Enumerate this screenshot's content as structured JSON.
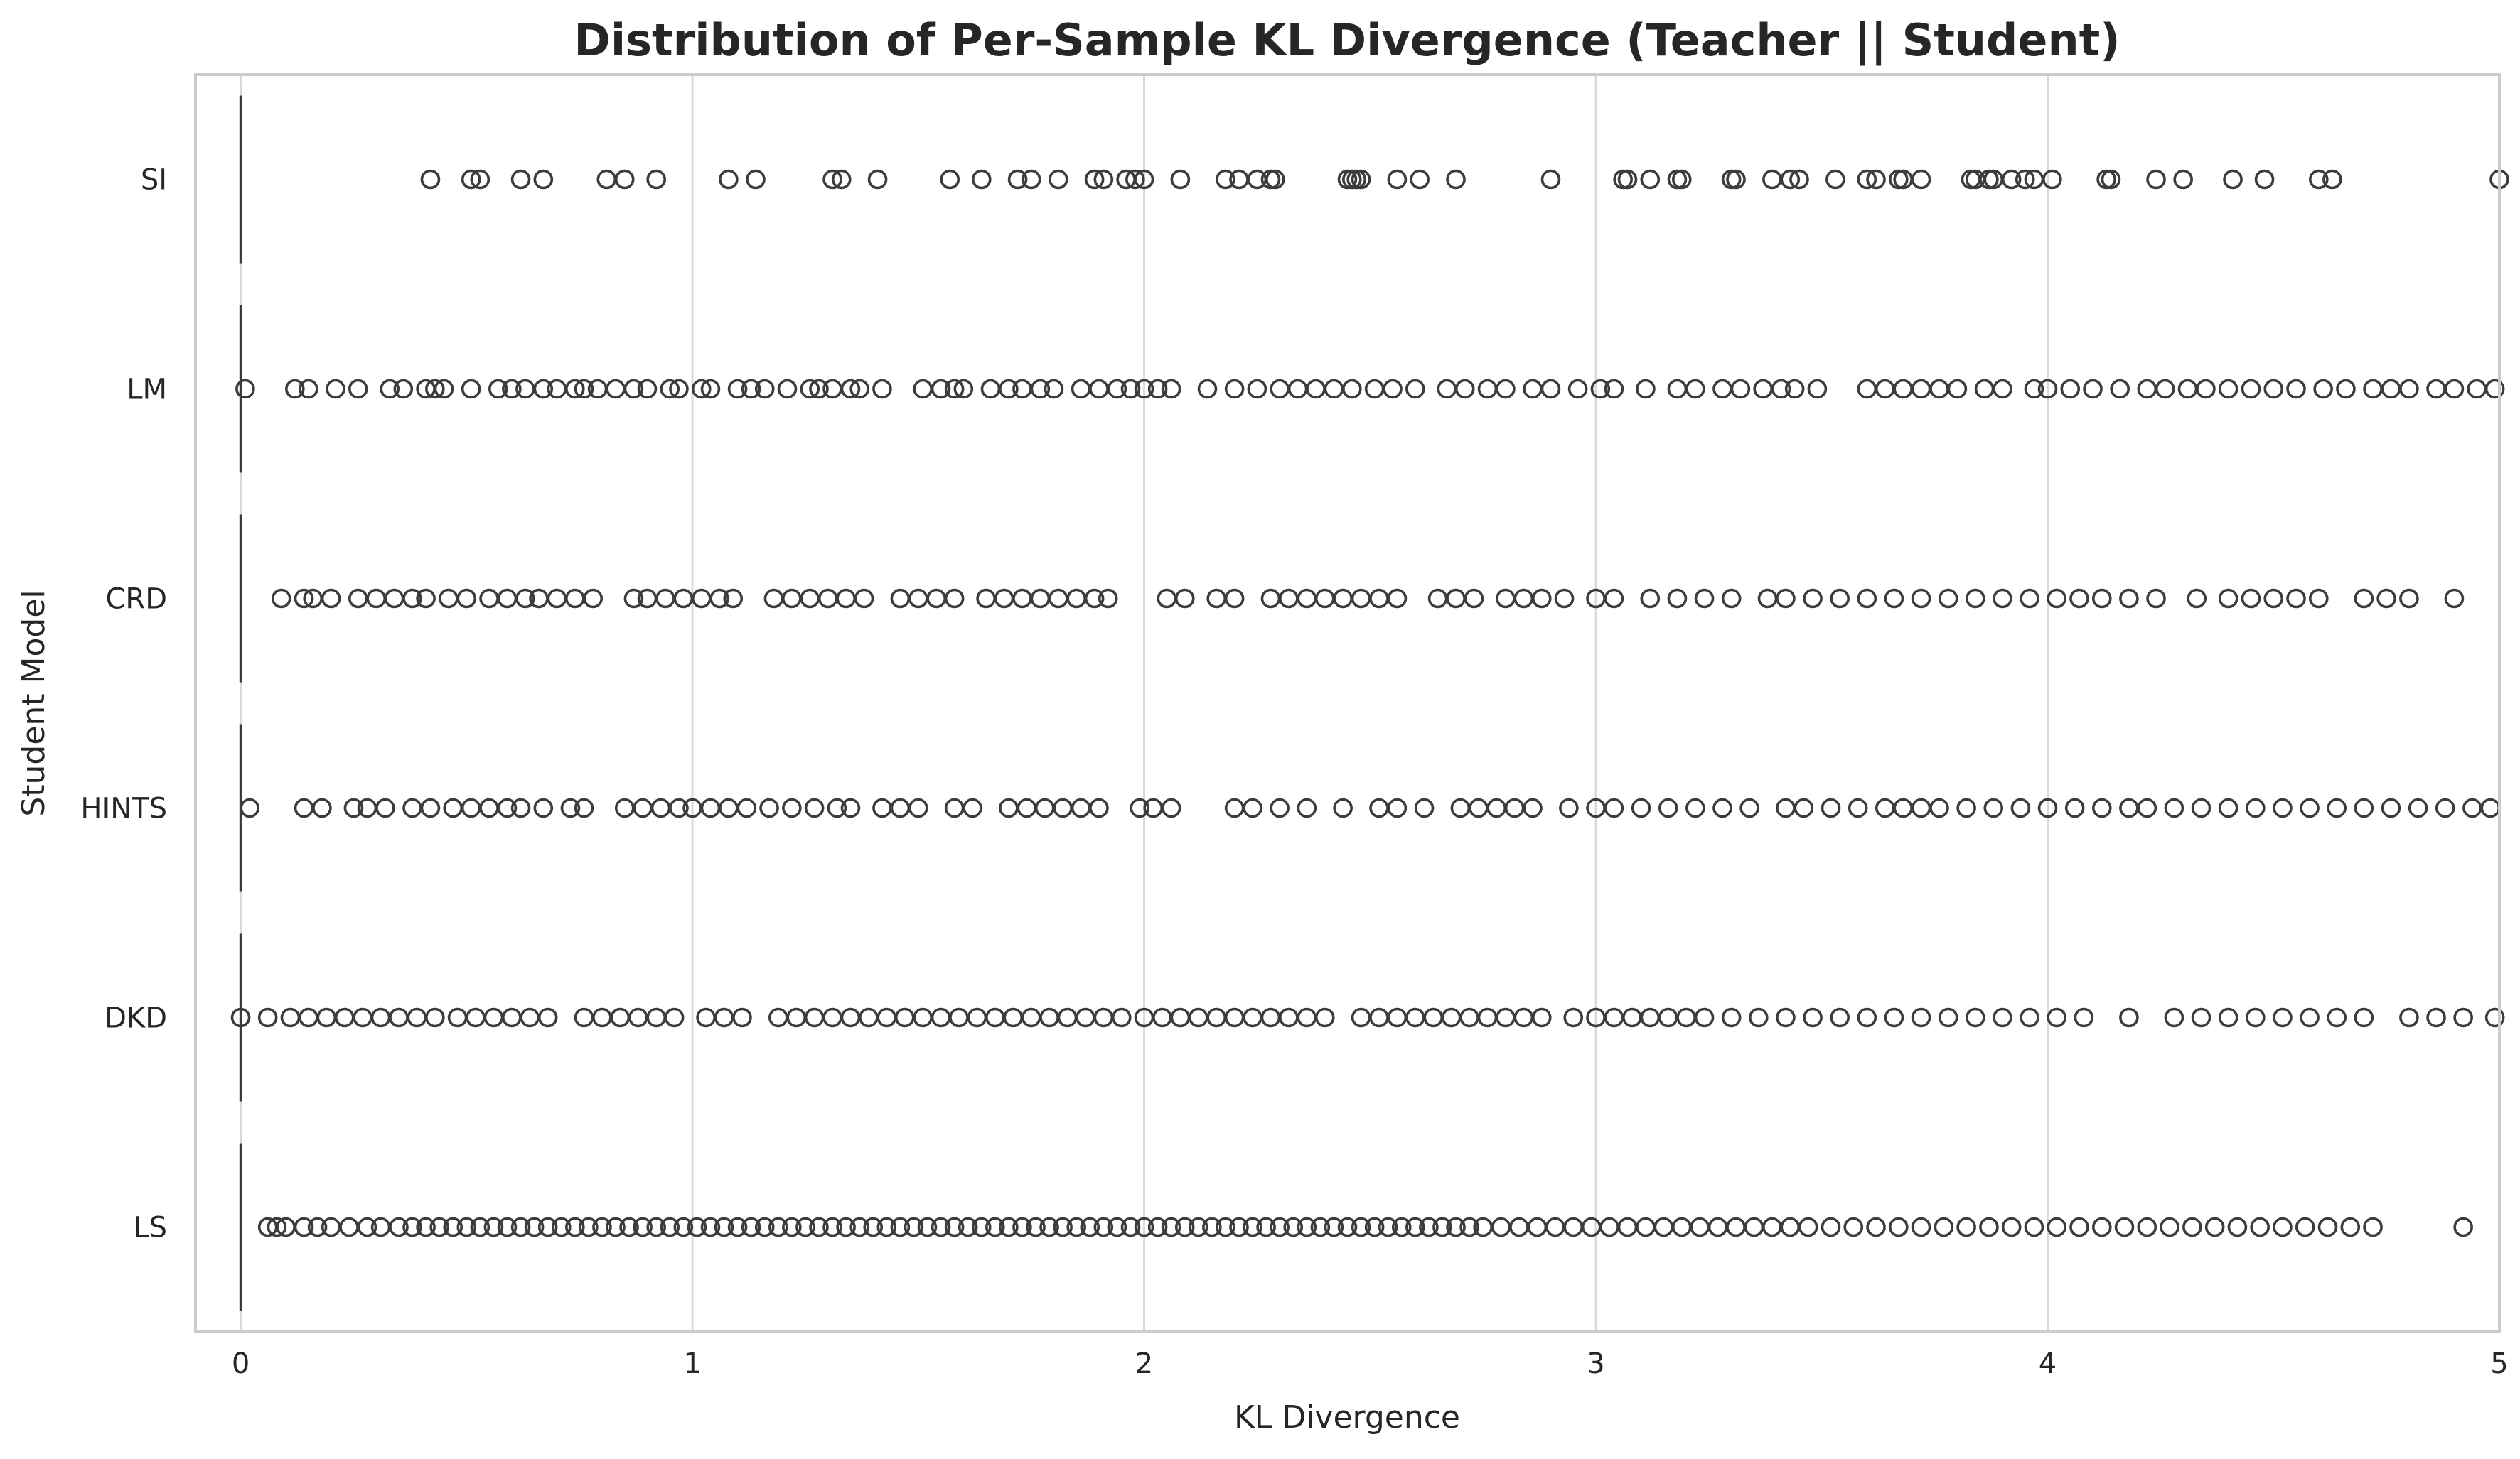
{
  "chart_data": {
    "type": "box",
    "orientation": "horizontal",
    "title": "Distribution of Per-Sample KL Divergence (Teacher || Student)",
    "xlabel": "KL Divergence",
    "ylabel": "Student Model",
    "xlim": [
      -0.1,
      5.0
    ],
    "xticks": [
      0,
      1,
      2,
      3,
      4,
      5
    ],
    "xtick_labels": [
      "0",
      "1",
      "2",
      "3",
      "4",
      "5"
    ],
    "grid": "vertical",
    "categories": [
      "SI",
      "LM",
      "CRD",
      "HINTS",
      "DKD",
      "LS"
    ],
    "box_color": "#3c3c3c",
    "series": [
      {
        "category": "SI",
        "box_q1": 0.0,
        "box_median": 0.0,
        "box_q3": 0.0,
        "whisker_low": 0.0,
        "whisker_high": 0.0,
        "outliers": [
          0.42,
          0.51,
          0.53,
          0.62,
          0.67,
          0.81,
          0.85,
          0.92,
          1.08,
          1.14,
          1.31,
          1.33,
          1.41,
          1.57,
          1.64,
          1.72,
          1.75,
          1.81,
          1.89,
          1.91,
          1.96,
          1.98,
          2.0,
          2.08,
          2.18,
          2.21,
          2.25,
          2.28,
          2.29,
          2.45,
          2.46,
          2.47,
          2.48,
          2.56,
          2.61,
          2.69,
          2.9,
          3.06,
          3.07,
          3.12,
          3.18,
          3.19,
          3.3,
          3.31,
          3.39,
          3.43,
          3.45,
          3.53,
          3.6,
          3.62,
          3.67,
          3.68,
          3.72,
          3.83,
          3.84,
          3.87,
          3.88,
          3.92,
          3.95,
          3.97,
          4.01,
          4.13,
          4.14,
          4.24,
          4.3,
          4.41,
          4.48,
          4.6,
          4.63,
          5.0
        ]
      },
      {
        "category": "LM",
        "box_q1": 0.0,
        "box_median": 0.0,
        "box_q3": 0.0,
        "whisker_low": 0.0,
        "whisker_high": 0.0,
        "outliers": [
          0.01,
          0.12,
          0.15,
          0.21,
          0.26,
          0.33,
          0.36,
          0.41,
          0.43,
          0.45,
          0.51,
          0.57,
          0.6,
          0.63,
          0.67,
          0.7,
          0.74,
          0.76,
          0.79,
          0.83,
          0.87,
          0.9,
          0.95,
          0.97,
          1.02,
          1.04,
          1.1,
          1.13,
          1.16,
          1.21,
          1.26,
          1.28,
          1.31,
          1.35,
          1.37,
          1.42,
          1.51,
          1.55,
          1.58,
          1.6,
          1.66,
          1.7,
          1.73,
          1.77,
          1.8,
          1.86,
          1.9,
          1.94,
          1.97,
          2.0,
          2.03,
          2.06,
          2.14,
          2.2,
          2.25,
          2.3,
          2.34,
          2.38,
          2.42,
          2.46,
          2.51,
          2.55,
          2.6,
          2.67,
          2.71,
          2.76,
          2.8,
          2.86,
          2.9,
          2.96,
          3.01,
          3.04,
          3.11,
          3.18,
          3.22,
          3.28,
          3.32,
          3.37,
          3.41,
          3.44,
          3.49,
          3.6,
          3.64,
          3.68,
          3.72,
          3.76,
          3.8,
          3.86,
          3.9,
          3.97,
          4.0,
          4.05,
          4.1,
          4.16,
          4.22,
          4.26,
          4.31,
          4.35,
          4.4,
          4.45,
          4.5,
          4.55,
          4.61,
          4.66,
          4.72,
          4.76,
          4.8,
          4.86,
          4.9,
          4.95,
          4.99
        ]
      },
      {
        "category": "CRD",
        "box_q1": 0.0,
        "box_median": 0.0,
        "box_q3": 0.0,
        "whisker_low": 0.0,
        "whisker_high": 0.0,
        "outliers": [
          0.09,
          0.14,
          0.16,
          0.2,
          0.26,
          0.3,
          0.34,
          0.38,
          0.41,
          0.46,
          0.5,
          0.55,
          0.59,
          0.63,
          0.66,
          0.7,
          0.74,
          0.78,
          0.87,
          0.9,
          0.94,
          0.98,
          1.02,
          1.06,
          1.09,
          1.18,
          1.22,
          1.26,
          1.3,
          1.34,
          1.38,
          1.46,
          1.5,
          1.54,
          1.58,
          1.65,
          1.69,
          1.73,
          1.77,
          1.81,
          1.85,
          1.89,
          1.92,
          2.05,
          2.09,
          2.16,
          2.2,
          2.28,
          2.32,
          2.36,
          2.4,
          2.44,
          2.48,
          2.52,
          2.56,
          2.65,
          2.69,
          2.73,
          2.8,
          2.84,
          2.88,
          2.93,
          3.0,
          3.04,
          3.12,
          3.18,
          3.24,
          3.3,
          3.38,
          3.42,
          3.48,
          3.54,
          3.6,
          3.66,
          3.72,
          3.78,
          3.84,
          3.9,
          3.96,
          4.02,
          4.07,
          4.12,
          4.18,
          4.24,
          4.33,
          4.4,
          4.45,
          4.5,
          4.55,
          4.6,
          4.7,
          4.75,
          4.8,
          4.9
        ]
      },
      {
        "category": "HINTS",
        "box_q1": 0.0,
        "box_median": 0.0,
        "box_q3": 0.0,
        "whisker_low": 0.0,
        "whisker_high": 0.0,
        "outliers": [
          0.02,
          0.14,
          0.18,
          0.25,
          0.28,
          0.32,
          0.38,
          0.42,
          0.47,
          0.51,
          0.55,
          0.59,
          0.62,
          0.67,
          0.73,
          0.76,
          0.85,
          0.89,
          0.93,
          0.97,
          1.0,
          1.04,
          1.08,
          1.12,
          1.17,
          1.22,
          1.27,
          1.32,
          1.35,
          1.42,
          1.46,
          1.5,
          1.58,
          1.62,
          1.7,
          1.74,
          1.78,
          1.82,
          1.86,
          1.9,
          1.99,
          2.02,
          2.06,
          2.2,
          2.24,
          2.3,
          2.36,
          2.44,
          2.52,
          2.56,
          2.62,
          2.7,
          2.74,
          2.78,
          2.82,
          2.86,
          2.94,
          3.0,
          3.04,
          3.1,
          3.16,
          3.22,
          3.28,
          3.34,
          3.42,
          3.46,
          3.52,
          3.58,
          3.64,
          3.68,
          3.72,
          3.76,
          3.82,
          3.88,
          3.94,
          4.0,
          4.06,
          4.12,
          4.18,
          4.22,
          4.28,
          4.34,
          4.4,
          4.46,
          4.52,
          4.58,
          4.64,
          4.7,
          4.76,
          4.82,
          4.88,
          4.94,
          4.98
        ]
      },
      {
        "category": "DKD",
        "box_q1": 0.0,
        "box_median": 0.0,
        "box_q3": 0.0,
        "whisker_low": 0.0,
        "whisker_high": 0.0,
        "outliers": [
          0.0,
          0.06,
          0.11,
          0.15,
          0.19,
          0.23,
          0.27,
          0.31,
          0.35,
          0.39,
          0.43,
          0.48,
          0.52,
          0.56,
          0.6,
          0.64,
          0.68,
          0.76,
          0.8,
          0.84,
          0.88,
          0.92,
          0.96,
          1.03,
          1.07,
          1.11,
          1.19,
          1.23,
          1.27,
          1.31,
          1.35,
          1.39,
          1.43,
          1.47,
          1.51,
          1.55,
          1.59,
          1.63,
          1.67,
          1.71,
          1.75,
          1.79,
          1.83,
          1.87,
          1.91,
          1.95,
          2.0,
          2.04,
          2.08,
          2.12,
          2.16,
          2.2,
          2.24,
          2.28,
          2.32,
          2.36,
          2.4,
          2.48,
          2.52,
          2.56,
          2.6,
          2.64,
          2.68,
          2.72,
          2.76,
          2.8,
          2.84,
          2.88,
          2.95,
          3.0,
          3.04,
          3.08,
          3.12,
          3.16,
          3.2,
          3.24,
          3.3,
          3.36,
          3.42,
          3.48,
          3.54,
          3.6,
          3.66,
          3.72,
          3.78,
          3.84,
          3.9,
          3.96,
          4.02,
          4.08,
          4.18,
          4.28,
          4.34,
          4.4,
          4.46,
          4.52,
          4.58,
          4.64,
          4.7,
          4.8,
          4.86,
          4.92,
          4.99
        ]
      },
      {
        "category": "LS",
        "box_q1": 0.0,
        "box_median": 0.0,
        "box_q3": 0.0,
        "whisker_low": 0.0,
        "whisker_high": 0.0,
        "outliers": [
          0.06,
          0.08,
          0.1,
          0.14,
          0.17,
          0.2,
          0.24,
          0.28,
          0.31,
          0.35,
          0.38,
          0.41,
          0.44,
          0.47,
          0.5,
          0.53,
          0.56,
          0.59,
          0.62,
          0.65,
          0.68,
          0.71,
          0.74,
          0.77,
          0.8,
          0.83,
          0.86,
          0.89,
          0.92,
          0.95,
          0.98,
          1.01,
          1.04,
          1.07,
          1.1,
          1.13,
          1.16,
          1.19,
          1.22,
          1.25,
          1.28,
          1.31,
          1.34,
          1.37,
          1.4,
          1.43,
          1.46,
          1.49,
          1.52,
          1.55,
          1.58,
          1.61,
          1.64,
          1.67,
          1.7,
          1.73,
          1.76,
          1.79,
          1.82,
          1.85,
          1.88,
          1.91,
          1.94,
          1.97,
          2.0,
          2.03,
          2.06,
          2.09,
          2.12,
          2.15,
          2.18,
          2.21,
          2.24,
          2.27,
          2.3,
          2.33,
          2.36,
          2.39,
          2.42,
          2.45,
          2.48,
          2.51,
          2.54,
          2.57,
          2.6,
          2.63,
          2.66,
          2.69,
          2.72,
          2.75,
          2.79,
          2.83,
          2.87,
          2.91,
          2.95,
          2.99,
          3.03,
          3.07,
          3.11,
          3.15,
          3.19,
          3.23,
          3.27,
          3.31,
          3.35,
          3.39,
          3.43,
          3.47,
          3.52,
          3.57,
          3.62,
          3.67,
          3.72,
          3.77,
          3.82,
          3.87,
          3.92,
          3.97,
          4.02,
          4.07,
          4.12,
          4.17,
          4.22,
          4.27,
          4.32,
          4.37,
          4.42,
          4.47,
          4.52,
          4.57,
          4.62,
          4.67,
          4.72,
          4.92
        ]
      }
    ]
  }
}
